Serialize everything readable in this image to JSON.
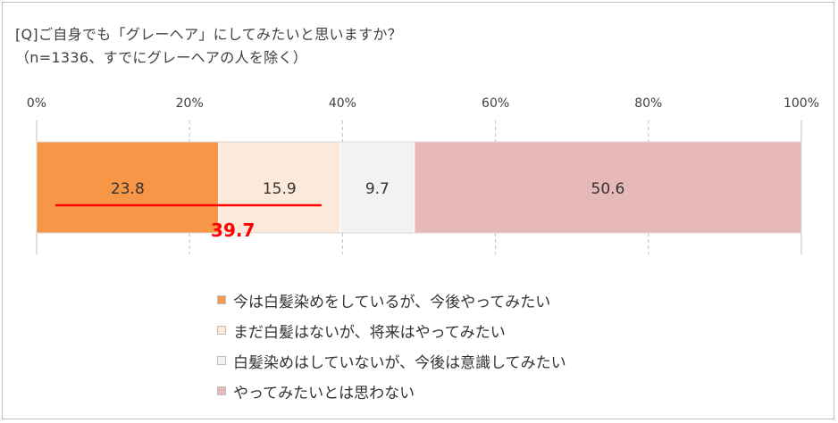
{
  "chart_data": {
    "type": "bar",
    "orientation": "horizontal-stacked",
    "title": "[Q]ご自身でも「グレーヘア」にしてみたいと思いますか？",
    "subtitle": "（n=1336、すでにグレーヘアの人を除く）",
    "xlim": [
      0,
      100
    ],
    "x_ticks": [
      "0%",
      "20%",
      "40%",
      "60%",
      "80%",
      "100%"
    ],
    "grid": true,
    "legend_position": "bottom",
    "series": [
      {
        "name": "今は白髪染めをしているが、今後やってみたい",
        "value": 23.8,
        "label": "23.8",
        "color": "#f79646"
      },
      {
        "name": "まだ白髪はないが、将来はやってみたい",
        "value": 15.9,
        "label": "15.9",
        "color": "#fde9d9"
      },
      {
        "name": "白髪染めはしていないが、今後は意識してみたい",
        "value": 9.7,
        "label": "9.7",
        "color": "#f2f2f2"
      },
      {
        "name": "やってみたいとは思わない",
        "value": 50.6,
        "label": "50.6",
        "color": "#e6b9b8"
      }
    ],
    "annotation": {
      "label": "39.7",
      "value": 39.7,
      "color": "#ff0000"
    }
  }
}
